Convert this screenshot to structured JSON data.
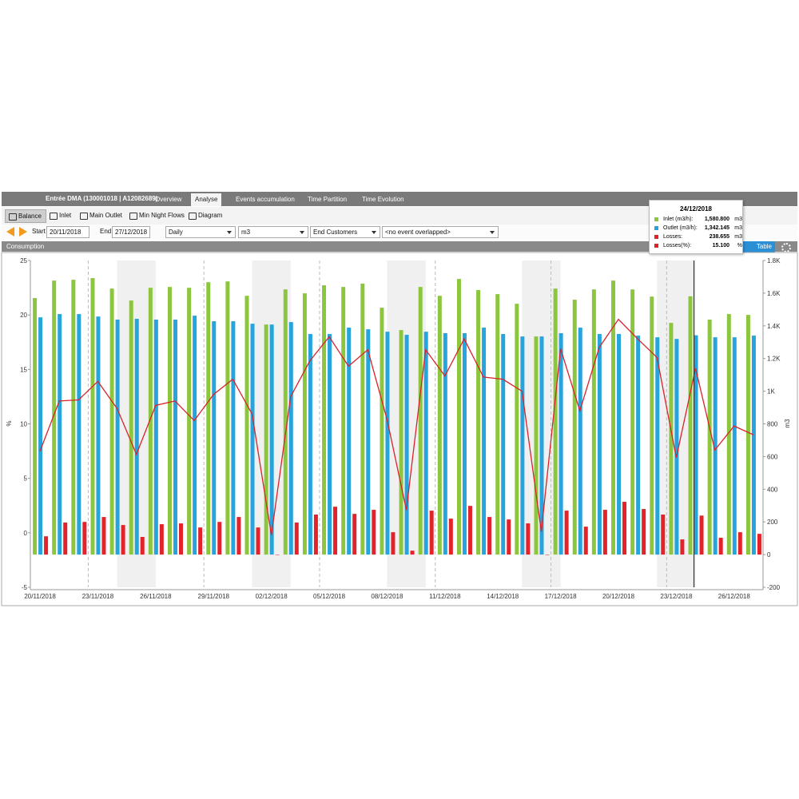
{
  "header": {
    "title": "Entrée DMA (130001018 | A12082689)",
    "tabs": [
      "Overview",
      "Analyse",
      "Events accumulation",
      "Time Partition",
      "Time Evolution"
    ]
  },
  "subtabs": [
    "Balance",
    "Inlet",
    "Main Outlet",
    "Min Night Flows",
    "Diagram"
  ],
  "filters": {
    "start_label": "Start",
    "start": "20/11/2018",
    "end_label": "End",
    "end": "27/12/2018",
    "interval": "Daily",
    "unit": "m3",
    "customers": "End Customers",
    "events": "<no event overlapped>"
  },
  "panel": {
    "title": "Consumption",
    "table_button": "Table"
  },
  "tooltip": {
    "date": "24/12/2018",
    "rows": [
      {
        "label": "Inlet (m3/h):",
        "value": "1,580.800",
        "unit": "m3"
      },
      {
        "label": "Outlet (m3/h):",
        "value": "1,342.145",
        "unit": "m3"
      },
      {
        "label": "Losses:",
        "value": "238.655",
        "unit": "m3"
      },
      {
        "label": "Losses(%):",
        "value": "15.100",
        "unit": "%"
      }
    ]
  },
  "chart_data": {
    "type": "bar",
    "categories": [
      "20/11/2018",
      null,
      null,
      "23/11/2018",
      null,
      null,
      "26/11/2018",
      null,
      null,
      "29/11/2018",
      null,
      null,
      "02/12/2018",
      null,
      null,
      "05/12/2018",
      null,
      null,
      "08/12/2018",
      null,
      null,
      "11/12/2018",
      null,
      null,
      "14/12/2018",
      null,
      null,
      "17/12/2018",
      null,
      null,
      "20/12/2018",
      null,
      null,
      "23/12/2018",
      null,
      null,
      "26/12/2018",
      null
    ],
    "ylabel": "%",
    "ylim": [
      -5,
      25
    ],
    "yticks": [
      -5,
      0,
      5,
      10,
      15,
      20,
      25
    ],
    "y2label": "m3",
    "y2lim": [
      -200,
      1800
    ],
    "y2ticks": [
      -200,
      0,
      200,
      400,
      600,
      800,
      {
        "value": 1000,
        "label": "1K"
      },
      {
        "value": 1200,
        "label": "1.2K"
      },
      {
        "value": 1400,
        "label": "1.4K"
      },
      {
        "value": 1600,
        "label": "1.6K"
      },
      {
        "value": 1800,
        "label": "1.8K"
      }
    ],
    "series": [
      {
        "kind": "bar",
        "axis": "y2",
        "color": "#8cc63e",
        "values": [
          1570,
          1677,
          1682,
          1692,
          1628,
          1555,
          1633,
          1638,
          1633,
          1667,
          1672,
          1584,
          1408,
          1623,
          1599,
          1648,
          1638,
          1658,
          1511,
          1374,
          1638,
          1584,
          1687,
          1619,
          1594,
          1535,
          1335,
          1628,
          1560,
          1623,
          1677,
          1623,
          1579,
          1418,
          1580.8,
          1438,
          1472,
          1467
        ]
      },
      {
        "kind": "bar",
        "axis": "y2",
        "color": "#27a4dc",
        "values": [
          1452,
          1472,
          1472,
          1457,
          1438,
          1443,
          1438,
          1438,
          1462,
          1428,
          1428,
          1413,
          1408,
          1423,
          1350,
          1350,
          1389,
          1379,
          1364,
          1345,
          1364,
          1355,
          1355,
          1389,
          1350,
          1335,
          1335,
          1355,
          1389,
          1350,
          1350,
          1340,
          1330,
          1320,
          1342.145,
          1330,
          1330,
          1340
        ]
      },
      {
        "kind": "bar",
        "axis": "y2",
        "color": "#e3232b",
        "values": [
          112,
          196,
          200,
          230,
          181,
          108,
          186,
          191,
          166,
          200,
          230,
          166,
          0,
          196,
          245,
          293,
          249,
          274,
          137,
          24,
          269,
          220,
          298,
          230,
          215,
          191,
          0,
          269,
          171,
          274,
          323,
          279,
          245,
          93,
          238.655,
          103,
          137,
          127
        ]
      },
      {
        "kind": "line",
        "color": "#d8232a",
        "values": [
          7.5,
          12.1,
          12.2,
          13.9,
          11.4,
          7.2,
          11.7,
          12.1,
          10.3,
          12.7,
          14.1,
          10.9,
          -0.2,
          12.5,
          15.8,
          18.0,
          15.3,
          16.8,
          10.4,
          2.1,
          16.8,
          14.4,
          17.8,
          14.3,
          14.1,
          13.0,
          0.1,
          16.9,
          11.2,
          17.0,
          19.6,
          17.8,
          16.1,
          6.9,
          15.1,
          7.6,
          9.8,
          9.0
        ]
      }
    ]
  }
}
